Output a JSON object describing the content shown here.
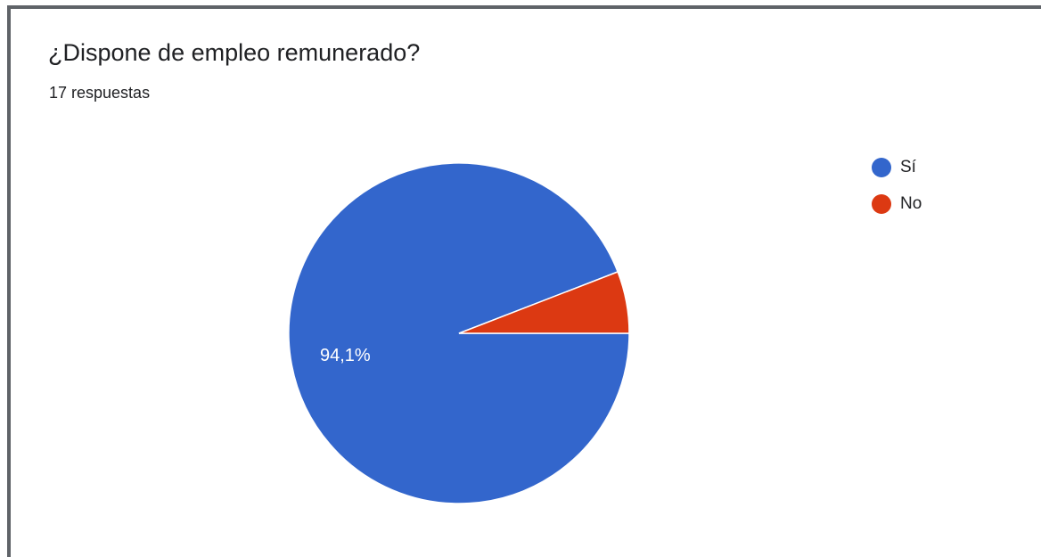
{
  "colors": {
    "si": "#3366cc",
    "no": "#dc3912",
    "slice_label_text": "#ffffff"
  },
  "chart_data": {
    "type": "pie",
    "title": "¿Dispone de empleo remunerado?",
    "subtitle": "17 respuestas",
    "categories": [
      "Sí",
      "No"
    ],
    "values": [
      16,
      1
    ],
    "percent_labels": [
      "94,1%",
      ""
    ],
    "legend_position": "top-right",
    "colors": [
      "#3366cc",
      "#dc3912"
    ]
  }
}
